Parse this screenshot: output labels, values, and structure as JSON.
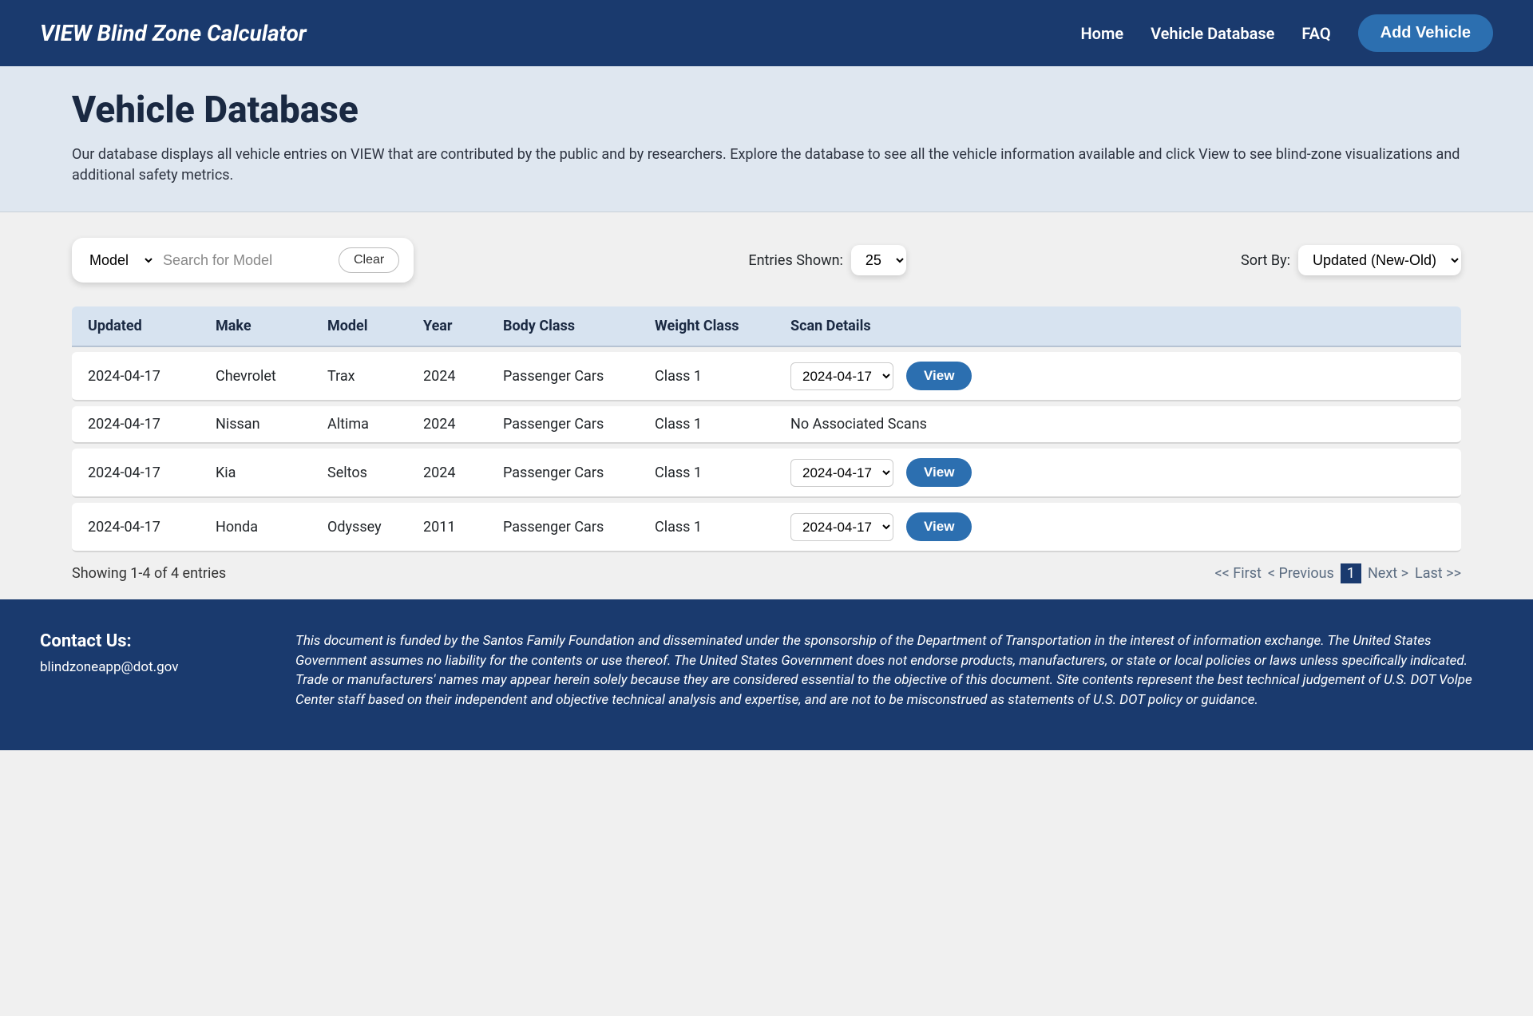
{
  "header": {
    "brand": "VIEW Blind Zone Calculator",
    "nav": {
      "home": "Home",
      "vehicle_db": "Vehicle Database",
      "faq": "FAQ",
      "add_vehicle": "Add Vehicle"
    }
  },
  "title_section": {
    "title": "Vehicle Database",
    "subtitle": "Our database displays all vehicle entries on VIEW that are contributed by the public and by researchers. Explore the database to see all the vehicle information available and click View to see blind-zone visualizations and additional safety metrics."
  },
  "controls": {
    "search_field": "Model",
    "search_placeholder": "Search for Model",
    "clear_label": "Clear",
    "entries_label": "Entries Shown:",
    "entries_value": "25",
    "sort_label": "Sort By:",
    "sort_value": "Updated (New-Old)"
  },
  "table": {
    "headers": {
      "updated": "Updated",
      "make": "Make",
      "model": "Model",
      "year": "Year",
      "body_class": "Body Class",
      "weight_class": "Weight Class",
      "scan_details": "Scan Details"
    },
    "rows": [
      {
        "updated": "2024-04-17",
        "make": "Chevrolet",
        "model": "Trax",
        "year": "2024",
        "body_class": "Passenger Cars",
        "weight_class": "Class 1",
        "scan_date": "2024-04-17",
        "has_scan": true
      },
      {
        "updated": "2024-04-17",
        "make": "Nissan",
        "model": "Altima",
        "year": "2024",
        "body_class": "Passenger Cars",
        "weight_class": "Class 1",
        "no_scan_text": "No Associated Scans",
        "has_scan": false
      },
      {
        "updated": "2024-04-17",
        "make": "Kia",
        "model": "Seltos",
        "year": "2024",
        "body_class": "Passenger Cars",
        "weight_class": "Class 1",
        "scan_date": "2024-04-17",
        "has_scan": true
      },
      {
        "updated": "2024-04-17",
        "make": "Honda",
        "model": "Odyssey",
        "year": "2011",
        "body_class": "Passenger Cars",
        "weight_class": "Class 1",
        "scan_date": "2024-04-17",
        "has_scan": true
      }
    ],
    "view_label": "View",
    "showing_text": "Showing 1-4 of 4 entries",
    "pagination": {
      "first": "<< First",
      "prev": "<  Previous",
      "current": "1",
      "next": "Next  >",
      "last": "Last  >>"
    }
  },
  "footer": {
    "contact_title": "Contact Us:",
    "contact_email": "blindzoneapp@dot.gov",
    "disclaimer": "This document is funded by the Santos Family Foundation and disseminated under the sponsorship of the Department of Transportation in the interest of information exchange. The United States Government assumes no liability for the contents or use thereof. The United States Government does not endorse products, manufacturers, or state or local policies or laws unless specifically indicated. Trade or manufacturers' names may appear herein solely because they are considered essential to the objective of this document. Site contents represent the best technical judgement of U.S. DOT Volpe Center staff based on their independent and objective technical analysis and expertise, and are not to be misconstrued as statements of U.S. DOT policy or guidance."
  },
  "colors": {
    "header_bg": "#1a3a6e",
    "accent_blue": "#2c6fb0",
    "title_bg": "#dfe7f0",
    "table_header_bg": "#d7e3f0",
    "body_bg": "#f0f0f0"
  }
}
